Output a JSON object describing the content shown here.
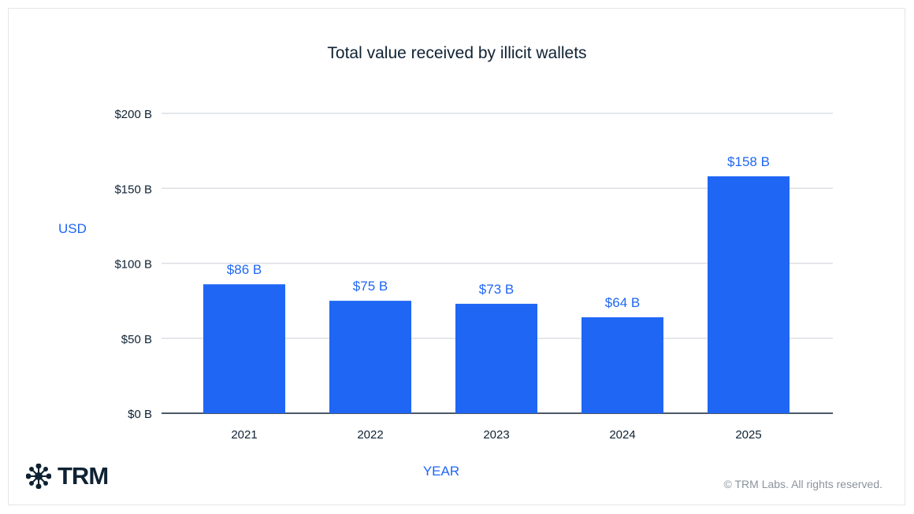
{
  "chart_data": {
    "type": "bar",
    "title": "Total value received by illicit wallets",
    "xlabel": "YEAR",
    "ylabel": "USD",
    "categories": [
      "2021",
      "2022",
      "2023",
      "2024",
      "2025"
    ],
    "values": [
      86,
      75,
      73,
      64,
      158
    ],
    "data_labels": [
      "$86 B",
      "$75 B",
      "$73 B",
      "$64 B",
      "$158 B"
    ],
    "yticks": [
      0,
      50,
      100,
      150,
      200
    ],
    "ytick_labels": [
      "$0 B",
      "$50 B",
      "$100 B",
      "$150 B",
      "$200 B"
    ],
    "ylim": [
      0,
      200
    ],
    "grid": true,
    "bar_color": "#1f66f5"
  },
  "footer": {
    "logo_text": "TRM",
    "copyright": "© TRM Labs. All rights reserved."
  }
}
